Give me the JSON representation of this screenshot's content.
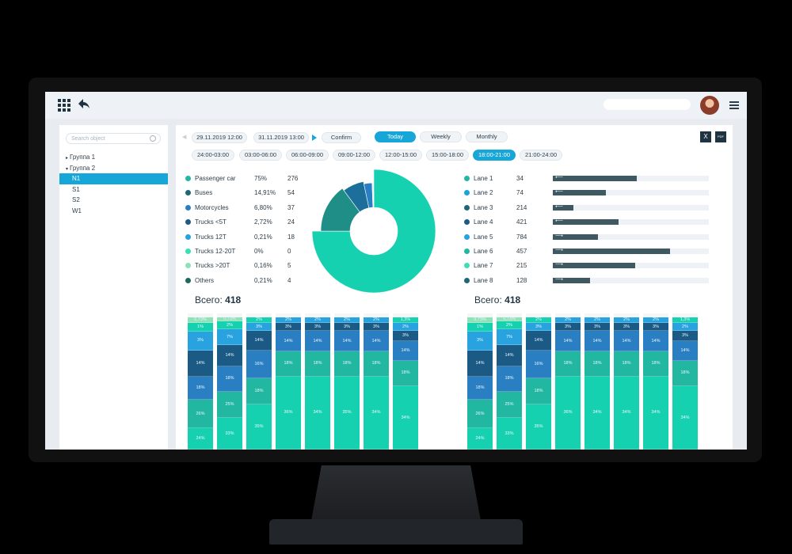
{
  "colors": {
    "accent": "#17a6d8",
    "dark": "#1f3341",
    "teal_bright": "#16d1b0",
    "teal": "#21b7a0",
    "blue_dark": "#1c5a86",
    "blue": "#2a7fc2",
    "sky": "#28a3df",
    "green_light": "#8de2b8",
    "mint": "#3be0b0",
    "navy_teal": "#1f6678"
  },
  "sidebar": {
    "search_placeholder": "Search object",
    "items": [
      {
        "label": "Группа 1",
        "caret": "▸"
      },
      {
        "label": "Группа 2",
        "caret": "▾"
      },
      {
        "label": "N1"
      },
      {
        "label": "S1"
      },
      {
        "label": "S2"
      },
      {
        "label": "W1"
      }
    ]
  },
  "toolbar": {
    "date_from": "29.11.2019 12:00",
    "date_to": "31.11.2019 13:00",
    "confirm": "Confirm",
    "today": "Today",
    "weekly": "Weekly",
    "monthly": "Monthly",
    "excel": "X",
    "pdf": "PDF"
  },
  "time_ranges": [
    "24:00-03:00",
    "03:00-06:00",
    "06:00-09:00",
    "09:00-12:00",
    "12:00-15:00",
    "15:00-18:00",
    "18:00-21:00",
    "21:00-24:00"
  ],
  "categories": [
    {
      "name": "Passenger car",
      "percent": "75%",
      "count": "276",
      "color": "#21b7a0"
    },
    {
      "name": "Buses",
      "percent": "14,91%",
      "count": "54",
      "color": "#1f6678"
    },
    {
      "name": "Motorcycles",
      "percent": "6,80%",
      "count": "37",
      "color": "#2a7fc2"
    },
    {
      "name": "Trucks <5T",
      "percent": "2,72%",
      "count": "24",
      "color": "#1c5a86"
    },
    {
      "name": "Trucks 12T",
      "percent": "0,21%",
      "count": "18",
      "color": "#28a3df"
    },
    {
      "name": "Trucks 12-20T",
      "percent": "0%",
      "count": "0",
      "color": "#3be0b0"
    },
    {
      "name": "Trucks >20T",
      "percent": "0,16%",
      "count": "5",
      "color": "#8de2b8"
    },
    {
      "name": "Others",
      "percent": "0,21%",
      "count": "4",
      "color": "#1a6b5c"
    }
  ],
  "chart_data": [
    {
      "type": "pie",
      "categories": [
        "Passenger car",
        "Buses",
        "Motorcycles",
        "Trucks <5T",
        "Trucks 12T",
        "Trucks 12-20T",
        "Trucks >20T",
        "Others"
      ],
      "values": [
        75,
        14.91,
        6.8,
        2.72,
        0.21,
        0,
        0.16,
        0.21
      ],
      "colors": [
        "#16d1b0",
        "#1f8e86",
        "#1c6f9a",
        "#2a7fc2",
        "#28a3df",
        "#3be0b0",
        "#8de2b8",
        "#1a6b5c"
      ]
    },
    {
      "type": "bar",
      "categories": [
        "Lane 1",
        "Lane 2",
        "Lane 3",
        "Lane 4",
        "Lane 5",
        "Lane 6",
        "Lane 7",
        "Lane 8"
      ],
      "values": [
        34,
        74,
        214,
        421,
        784,
        457,
        215,
        128
      ],
      "bar_fraction": [
        0.54,
        0.34,
        0.13,
        0.42,
        0.29,
        0.75,
        0.53,
        0.24
      ],
      "directions": [
        "left",
        "left",
        "left",
        "left",
        "right",
        "right",
        "right",
        "right"
      ],
      "colors": [
        "#21b7a0",
        "#17a6d8",
        "#1f6678",
        "#1c5a86",
        "#28a3df",
        "#21b7a0",
        "#3be0b0",
        "#1f6678"
      ]
    },
    {
      "type": "bar",
      "stacked": true,
      "total_label": "Всего:",
      "total": "418",
      "segment_colors": [
        "#8de2b8",
        "#16d1b0",
        "#28a3df",
        "#1c5a86",
        "#2a7fc2",
        "#21b7a0",
        "#16d1b0"
      ],
      "columns": [
        {
          "labels": [
            "0,73%",
            "1%",
            "3%",
            "14%",
            "18%",
            "26%",
            "24%"
          ],
          "values": [
            4,
            7,
            14,
            20,
            17,
            22,
            16
          ]
        },
        {
          "labels": [
            "0,73%",
            "2%",
            "7%",
            "14%",
            "18%",
            "25%",
            "33%"
          ],
          "values": [
            3,
            6,
            12,
            16,
            19,
            20,
            24
          ]
        },
        {
          "labels": [
            "2%",
            "3%",
            "14%",
            "16%",
            "18%",
            "35%"
          ],
          "values": [
            4,
            6,
            15,
            21,
            20,
            34
          ]
        },
        {
          "labels": [
            "2%",
            "3%",
            "14%",
            "18%",
            "36%"
          ],
          "values": [
            4,
            6,
            16,
            19,
            55
          ]
        },
        {
          "labels": [
            "2%",
            "3%",
            "14%",
            "18%",
            "34%"
          ],
          "values": [
            4,
            6,
            16,
            19,
            55
          ]
        },
        {
          "labels": [
            "2%",
            "3%",
            "14%",
            "18%",
            "35%"
          ],
          "values": [
            4,
            6,
            16,
            19,
            55
          ]
        },
        {
          "labels": [
            "2%",
            "3%",
            "14%",
            "18%",
            "34%"
          ],
          "values": [
            4,
            6,
            16,
            19,
            55
          ]
        },
        {
          "labels": [
            "1,3%",
            "2%",
            "3%",
            "14%",
            "18%",
            "34%"
          ],
          "values": [
            4,
            6,
            8,
            15,
            19,
            48
          ]
        }
      ]
    },
    {
      "type": "bar",
      "stacked": true,
      "total_label": "Всего:",
      "total": "418",
      "segment_colors": [
        "#8de2b8",
        "#16d1b0",
        "#28a3df",
        "#1c5a86",
        "#2a7fc2",
        "#21b7a0",
        "#16d1b0"
      ],
      "columns": [
        {
          "labels": [
            "0,73%",
            "1%",
            "3%",
            "14%",
            "18%",
            "26%",
            "24%"
          ],
          "values": [
            4,
            7,
            14,
            20,
            17,
            22,
            16
          ]
        },
        {
          "labels": [
            "0,73%",
            "2%",
            "7%",
            "14%",
            "18%",
            "25%",
            "33%"
          ],
          "values": [
            3,
            6,
            12,
            16,
            19,
            20,
            24
          ]
        },
        {
          "labels": [
            "2%",
            "3%",
            "14%",
            "16%",
            "18%",
            "35%"
          ],
          "values": [
            4,
            6,
            15,
            21,
            20,
            34
          ]
        },
        {
          "labels": [
            "2%",
            "3%",
            "14%",
            "18%",
            "36%"
          ],
          "values": [
            4,
            6,
            16,
            19,
            55
          ]
        },
        {
          "labels": [
            "2%",
            "3%",
            "14%",
            "18%",
            "34%"
          ],
          "values": [
            4,
            6,
            16,
            19,
            55
          ]
        },
        {
          "labels": [
            "2%",
            "3%",
            "14%",
            "18%",
            "34%"
          ],
          "values": [
            4,
            6,
            16,
            19,
            55
          ]
        },
        {
          "labels": [
            "2%",
            "3%",
            "14%",
            "18%",
            "34%"
          ],
          "values": [
            4,
            6,
            16,
            19,
            55
          ]
        },
        {
          "labels": [
            "1,3%",
            "2%",
            "3%",
            "14%",
            "18%",
            "34%"
          ],
          "values": [
            4,
            6,
            8,
            15,
            19,
            48
          ]
        }
      ]
    }
  ]
}
